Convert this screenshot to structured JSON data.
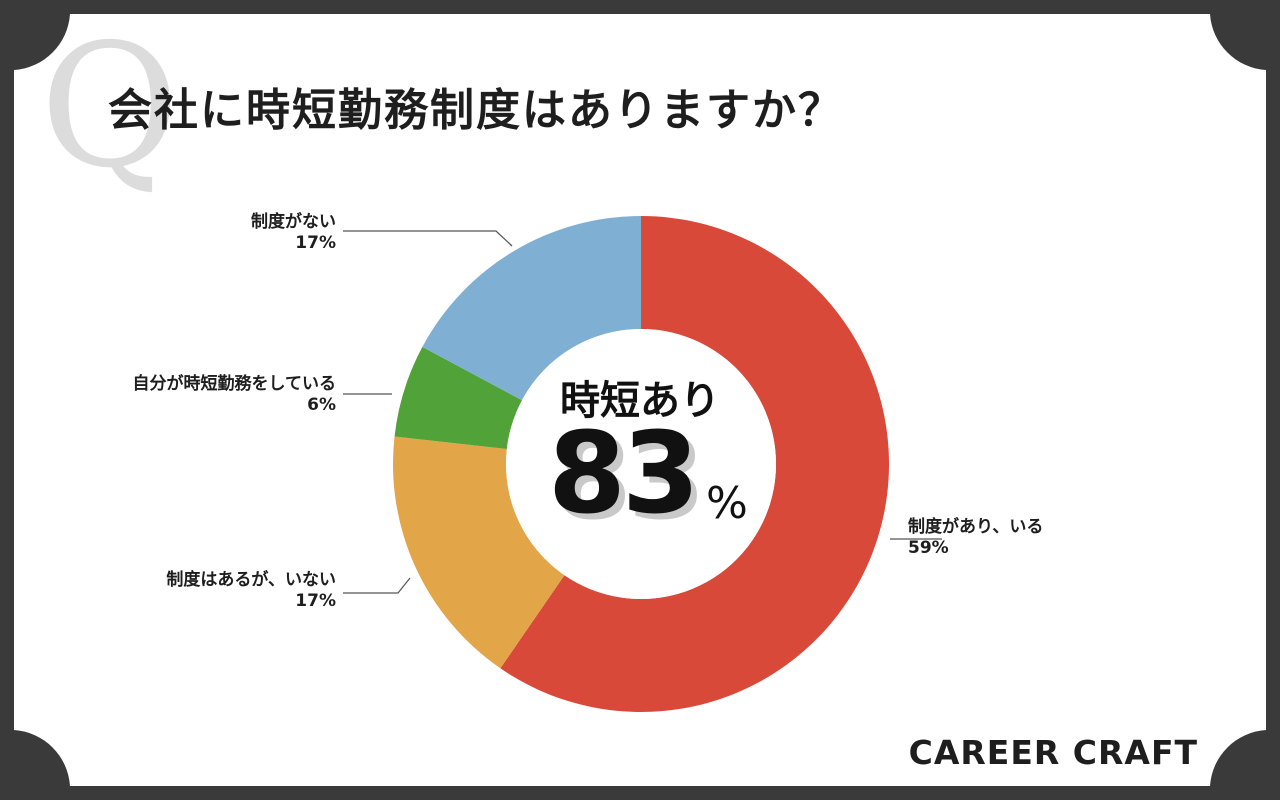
{
  "title": "会社に時短勤務制度はありますか？",
  "q_mark": "Q",
  "brand": "CAREER CRAFT",
  "center": {
    "subtitle": "時短あり",
    "value": "83",
    "unit": "%"
  },
  "colors": {
    "frame": "#3a3a3a",
    "card": "#ffffff",
    "red": "#d8493a",
    "orange": "#e2a548",
    "green": "#52a23a",
    "blue": "#7fb0d3",
    "leader": "#555555"
  },
  "chart_data": {
    "type": "pie",
    "title": "会社に時短勤務制度はありますか？",
    "categories": [
      "制度があり、いる",
      "制度はあるが、いない",
      "自分が時短勤務をしている",
      "制度がない"
    ],
    "values": [
      59,
      17,
      6,
      17
    ],
    "unit": "%",
    "colors": [
      "#d8493a",
      "#e2a548",
      "#52a23a",
      "#7fb0d3"
    ],
    "donut": true,
    "center_text": "時短あり 83%"
  },
  "labels": [
    {
      "name": "制度があり、いる",
      "pct": "59%"
    },
    {
      "name": "制度はあるが、いない",
      "pct": "17%"
    },
    {
      "name": "自分が時短勤務をしている",
      "pct": "6%"
    },
    {
      "name": "制度がない",
      "pct": "17%"
    }
  ]
}
